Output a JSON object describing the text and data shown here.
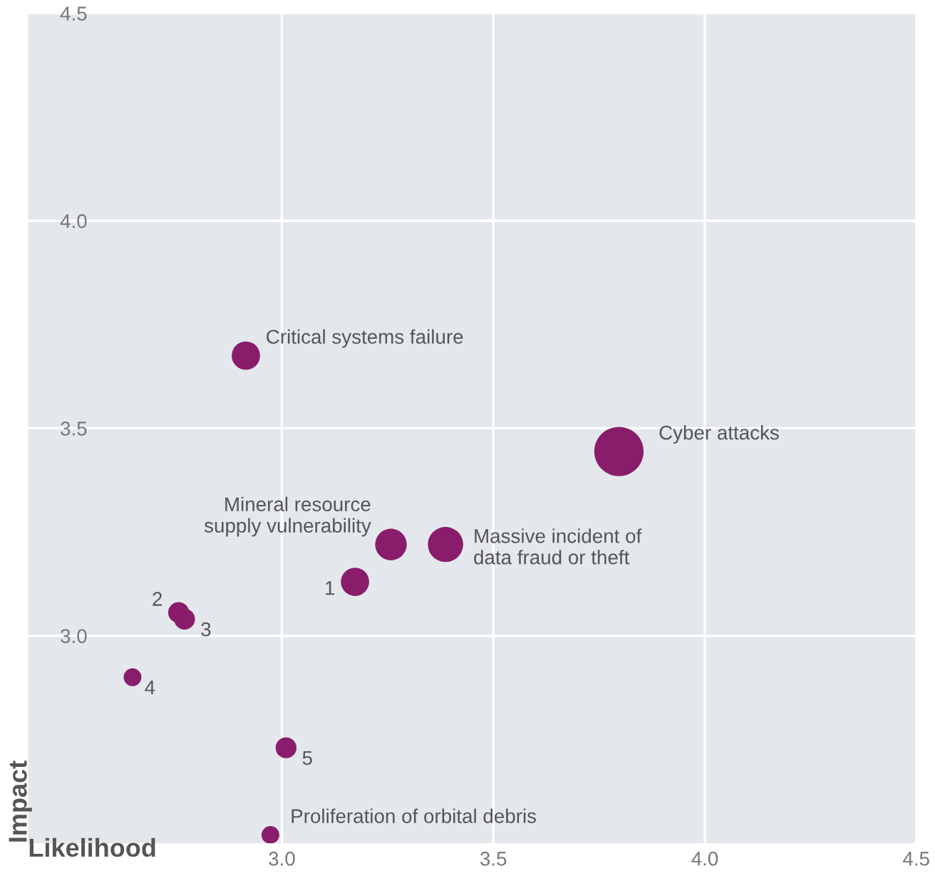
{
  "chart_data": {
    "type": "bubble",
    "xlabel": "Likelihood",
    "ylabel": "Impact",
    "series": [
      {
        "color": "#8a1c6c",
        "x": [
          2.915,
          3.797,
          3.258,
          3.387,
          3.173,
          2.756,
          2.77,
          2.647,
          3.01,
          2.973
        ],
        "values": [
          3.675,
          3.444,
          3.22,
          3.22,
          3.13,
          3.056,
          3.04,
          2.9,
          2.73,
          2.52
        ],
        "sizes": [
          0.33,
          1,
          0.41,
          0.51,
          0.33,
          0.18,
          0.18,
          0.13,
          0.18,
          0.13
        ]
      }
    ],
    "xlim": [
      2.4,
      4.5
    ],
    "ylim": [
      2.5,
      4.5
    ],
    "xticks": [
      {
        "value": 3,
        "label": "3.0"
      },
      {
        "value": 3.5,
        "label": "3.5"
      },
      {
        "value": 4,
        "label": "4.0"
      },
      {
        "value": 4.5,
        "label": "4.5"
      }
    ],
    "yticks": [
      {
        "value": 3,
        "label": "3.0"
      },
      {
        "value": 3.5,
        "label": "3.5"
      },
      {
        "value": 4,
        "label": "4.0"
      },
      {
        "value": 4.5,
        "label": "4.5"
      }
    ],
    "grid": true,
    "annotations": [
      {
        "text": "Critical systems failure",
        "x": 2.915,
        "y": 3.675
      },
      {
        "text": "Cyber attacks",
        "x": 3.797,
        "y": 3.444
      },
      {
        "text": "Mineral resource\nsupply vulnerability",
        "x": 3.258,
        "y": 3.22
      },
      {
        "text": "Massive incident of\ndata fraud or theft",
        "x": 3.387,
        "y": 3.22
      },
      {
        "text": "1",
        "x": 3.173,
        "y": 3.13
      },
      {
        "text": "2",
        "x": 2.756,
        "y": 3.056
      },
      {
        "text": "3",
        "x": 2.77,
        "y": 3.04
      },
      {
        "text": "4",
        "x": 2.647,
        "y": 2.9
      },
      {
        "text": "5",
        "x": 3.01,
        "y": 2.73
      },
      {
        "text": "Proliferation of orbital debris",
        "x": 2.973,
        "y": 2.52
      }
    ]
  }
}
